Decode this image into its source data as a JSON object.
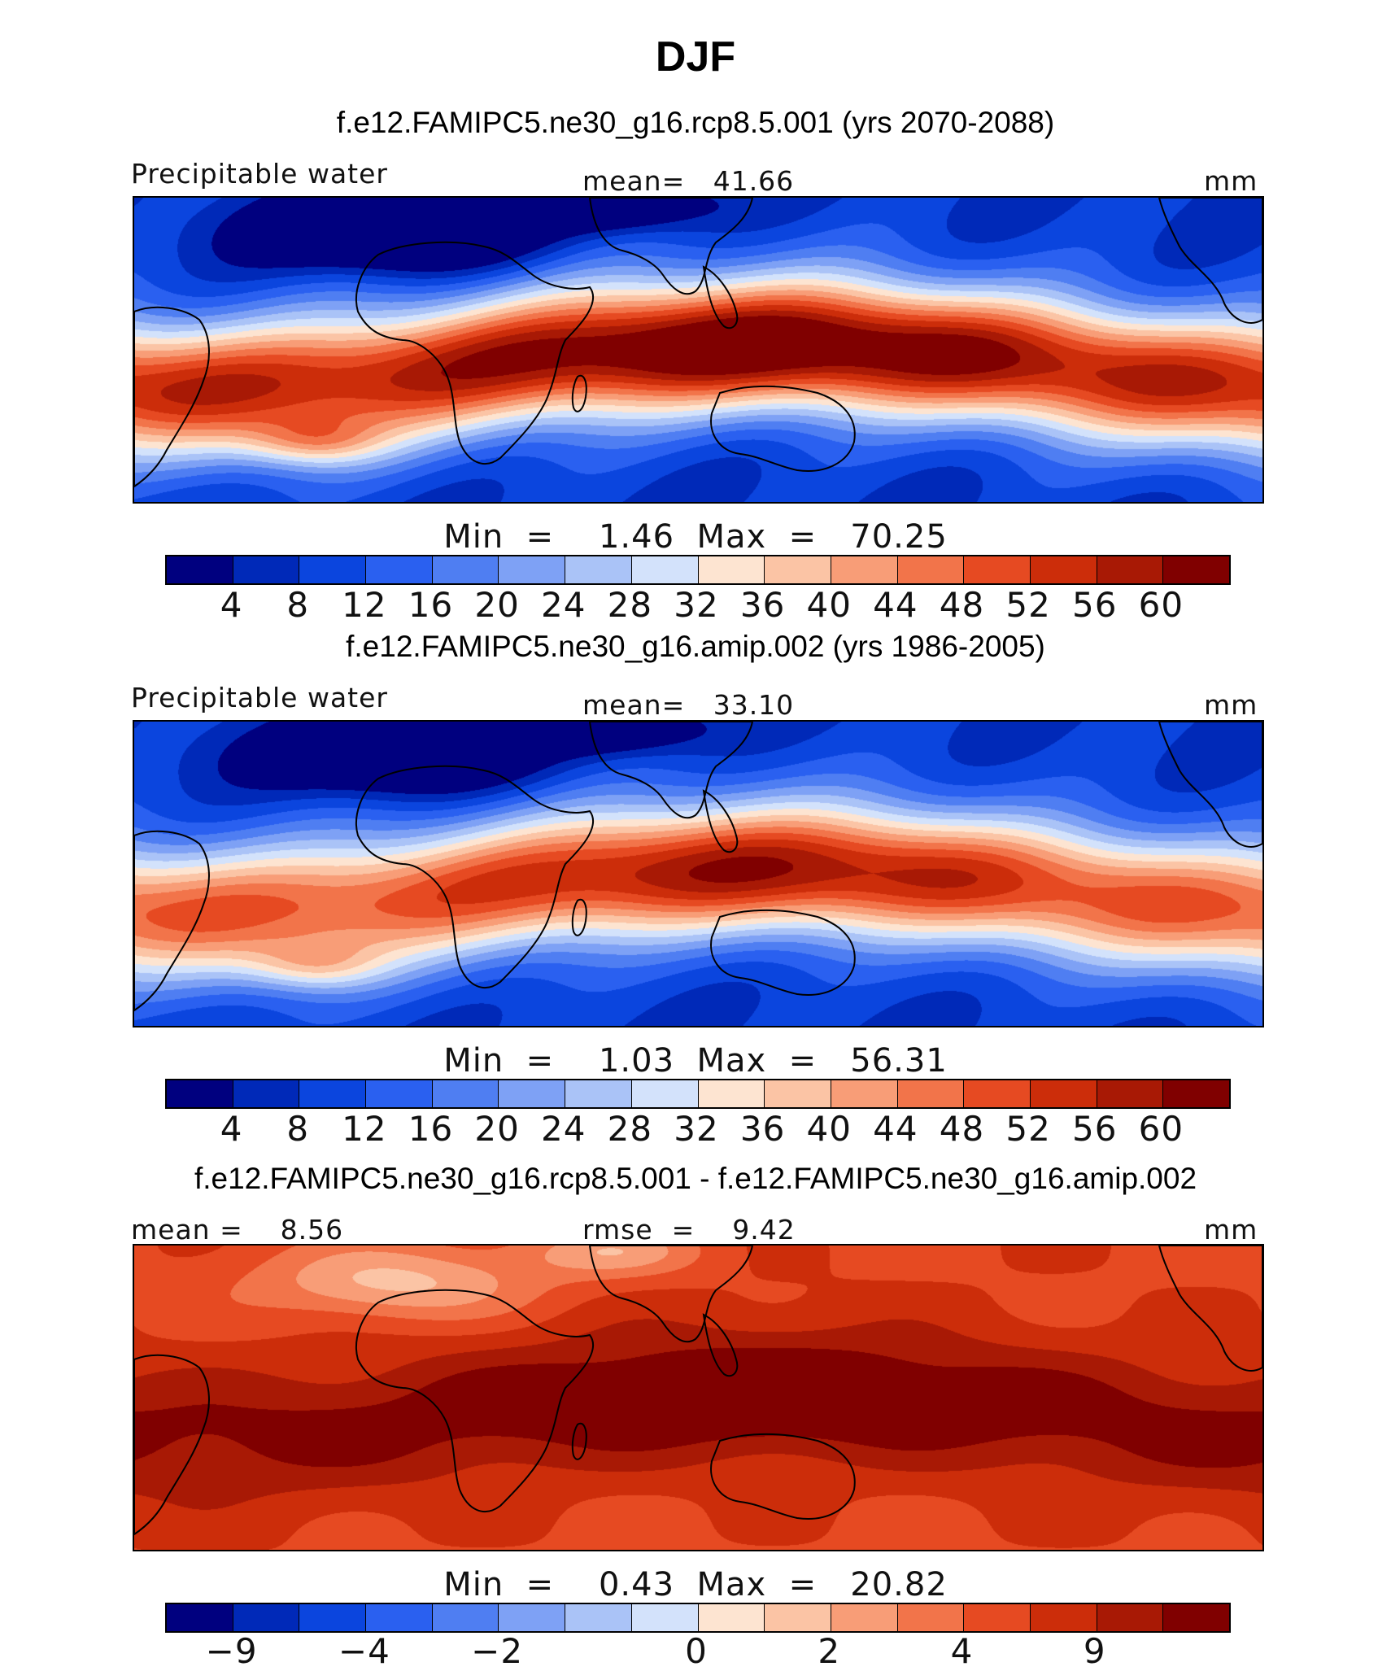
{
  "title": "DJF",
  "panels": [
    {
      "case_title": "f.e12.FAMIPC5.ne30_g16.rcp8.5.001 (yrs 2070-2088)",
      "left_label": "Precipitable water",
      "center_label": "mean=   41.66",
      "units": "mm",
      "minmax": "Min  =    1.46  Max  =   70.25",
      "palette": [
        "#00007f",
        "#0029b8",
        "#0b45de",
        "#2a60f0",
        "#4f7ef2",
        "#7ea1f5",
        "#aac3f7",
        "#d3e2fb",
        "#fde4d1",
        "#fbc4a5",
        "#f89d77",
        "#f2744a",
        "#e64a22",
        "#cc2d0a",
        "#a81905",
        "#800000"
      ],
      "ticks": [
        "4",
        "8",
        "12",
        "16",
        "20",
        "24",
        "28",
        "32",
        "36",
        "40",
        "44",
        "48",
        "52",
        "56",
        "60"
      ],
      "field": "rcp"
    },
    {
      "case_title": "f.e12.FAMIPC5.ne30_g16.amip.002 (yrs 1986-2005)",
      "left_label": "Precipitable water",
      "center_label": "mean=   33.10",
      "units": "mm",
      "minmax": "Min  =    1.03  Max  =   56.31",
      "palette": [
        "#00007f",
        "#0029b8",
        "#0b45de",
        "#2a60f0",
        "#4f7ef2",
        "#7ea1f5",
        "#aac3f7",
        "#d3e2fb",
        "#fde4d1",
        "#fbc4a5",
        "#f89d77",
        "#f2744a",
        "#e64a22",
        "#cc2d0a",
        "#a81905",
        "#800000"
      ],
      "ticks": [
        "4",
        "8",
        "12",
        "16",
        "20",
        "24",
        "28",
        "32",
        "36",
        "40",
        "44",
        "48",
        "52",
        "56",
        "60"
      ],
      "field": "amip"
    },
    {
      "case_title": "f.e12.FAMIPC5.ne30_g16.rcp8.5.001 - f.e12.FAMIPC5.ne30_g16.amip.002",
      "left_label": "mean =    8.56",
      "center_label": "rmse  =    9.42",
      "units": "mm",
      "minmax": "Min  =    0.43  Max  =   20.82",
      "palette": [
        "#00007f",
        "#0029b8",
        "#0b45de",
        "#2a60f0",
        "#4f7ef2",
        "#7ea1f5",
        "#aac3f7",
        "#d3e2fb",
        "#fde4d1",
        "#fbc4a5",
        "#f89d77",
        "#f2744a",
        "#e64a22",
        "#cc2d0a",
        "#a81905",
        "#800000"
      ],
      "ticks": [
        "−9",
        "−4",
        "−2",
        "0",
        "2",
        "4",
        "9"
      ],
      "field": "diff"
    }
  ]
}
